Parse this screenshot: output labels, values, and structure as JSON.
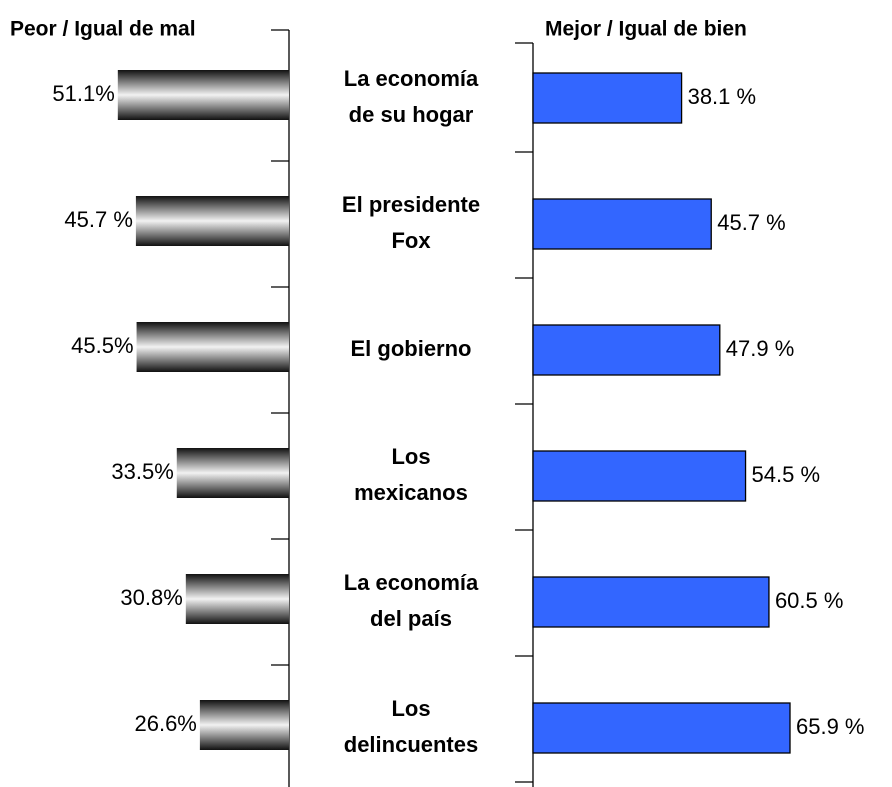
{
  "chart_data": {
    "type": "butterfly",
    "categories": [
      [
        "La economía",
        "de su hogar"
      ],
      [
        "El presidente",
        "Fox"
      ],
      [
        "El gobierno"
      ],
      [
        "Los",
        "mexicanos"
      ],
      [
        "La economía",
        "del país"
      ],
      [
        "Los",
        "delincuentes"
      ]
    ],
    "series": [
      {
        "name": "Peor / Igual de mal",
        "color": "#808080",
        "side": "left",
        "values": [
          51.1,
          45.7,
          45.5,
          33.5,
          30.8,
          26.6
        ],
        "value_labels": [
          "51.1%",
          "45.7 %",
          "45.5%",
          "33.5%",
          "30.8%",
          "26.6%"
        ]
      },
      {
        "name": "Mejor / Igual de bien",
        "color": "#3366ff",
        "side": "right",
        "values": [
          38.1,
          45.7,
          47.9,
          54.5,
          60.5,
          65.9
        ],
        "value_labels": [
          "38.1 %",
          "45.7 %",
          "47.9 %",
          "54.5 %",
          "60.5 %",
          "65.9 %"
        ]
      }
    ]
  }
}
